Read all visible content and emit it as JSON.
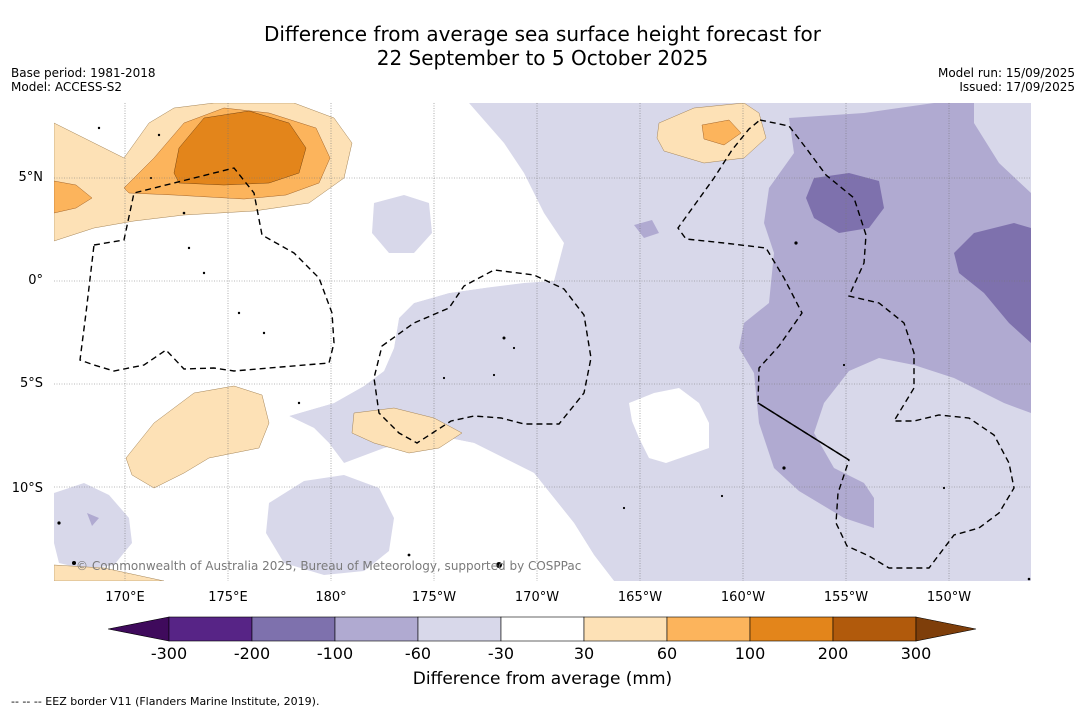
{
  "title_line1": "Difference from average sea surface height forecast for",
  "title_line2": "22 September to 5 October 2025",
  "base_period": "Base period: 1981-2018",
  "model": "Model: ACCESS-S2",
  "model_run": "Model run: 15/09/2025",
  "issued": "Issued: 17/09/2025",
  "lat_labels": [
    "5°N",
    "0°",
    "5°S",
    "10°S"
  ],
  "lon_labels": [
    "170°E",
    "175°E",
    "180°",
    "175°W",
    "170°W",
    "165°W",
    "160°W",
    "155°W",
    "150°W"
  ],
  "copyright": "© Commonwealth of Australia 2025, Bureau of Meteorology, supported by COSPPac",
  "colorbar": {
    "ticks": [
      "-300",
      "-200",
      "-100",
      "-60",
      "-30",
      "30",
      "60",
      "100",
      "200",
      "300"
    ],
    "colors": [
      "#3f0a5c",
      "#572486",
      "#7e71ad",
      "#b0aad1",
      "#d8d8ea",
      "#ffffff",
      "#fde1b6",
      "#fcb45c",
      "#e3851b",
      "#b15a0c",
      "#7e3e0a"
    ],
    "label": "Difference from average (mm)"
  },
  "eez_note": "--  --  -- EEZ border V11 (Flanders Marine Institute, 2019)."
}
